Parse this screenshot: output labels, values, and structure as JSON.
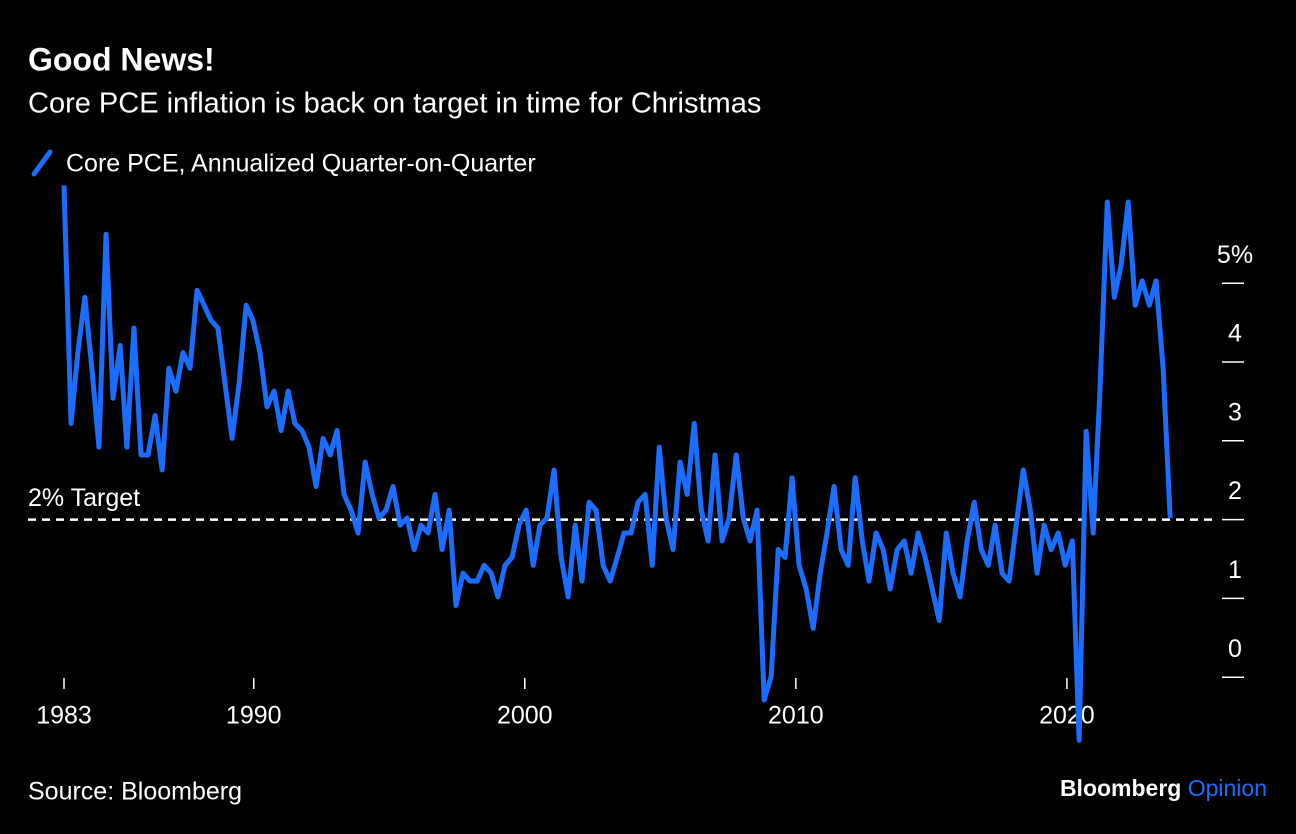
{
  "chart_data": {
    "type": "line",
    "title": "Good News!",
    "subtitle": "Core PCE inflation is back on target in time for Christmas",
    "source": "Source: Bloomberg",
    "brand": [
      "Bloomberg",
      "Opinion"
    ],
    "target": {
      "value": 2,
      "label": "2% Target"
    },
    "xlim": [
      1983,
      2024.8
    ],
    "xticks": [
      1983,
      1990,
      2000,
      2010,
      2020
    ],
    "ylim": [
      -1,
      6.5
    ],
    "yticks": [
      0,
      1,
      2,
      3,
      4,
      {
        "value": 5,
        "label": "5%"
      }
    ],
    "x": [
      1983.0,
      1983.26,
      1983.52,
      1983.77,
      1984.03,
      1984.29,
      1984.55,
      1984.81,
      1985.07,
      1985.32,
      1985.58,
      1985.84,
      1986.1,
      1986.36,
      1986.62,
      1986.87,
      1987.13,
      1987.39,
      1987.65,
      1987.91,
      1988.17,
      1988.42,
      1988.68,
      1988.94,
      1989.2,
      1989.46,
      1989.72,
      1989.97,
      1990.23,
      1990.49,
      1990.75,
      1991.01,
      1991.27,
      1991.52,
      1991.78,
      1992.04,
      1992.3,
      1992.56,
      1992.82,
      1993.07,
      1993.33,
      1993.59,
      1993.85,
      1994.11,
      1994.37,
      1994.62,
      1994.88,
      1995.14,
      1995.4,
      1995.66,
      1995.92,
      1996.17,
      1996.43,
      1996.69,
      1996.95,
      1997.21,
      1997.46,
      1997.72,
      1997.98,
      1998.24,
      1998.5,
      1998.76,
      1999.01,
      1999.27,
      1999.53,
      1999.79,
      2000.05,
      2000.31,
      2000.56,
      2000.82,
      2001.08,
      2001.34,
      2001.6,
      2001.86,
      2002.11,
      2002.37,
      2002.63,
      2002.89,
      2003.15,
      2003.41,
      2003.66,
      2003.92,
      2004.18,
      2004.44,
      2004.7,
      2004.96,
      2005.21,
      2005.47,
      2005.73,
      2005.99,
      2006.25,
      2006.51,
      2006.76,
      2007.02,
      2007.28,
      2007.54,
      2007.8,
      2008.06,
      2008.31,
      2008.57,
      2008.83,
      2009.09,
      2009.35,
      2009.6,
      2009.86,
      2010.12,
      2010.38,
      2010.64,
      2010.9,
      2011.15,
      2011.41,
      2011.67,
      2011.93,
      2012.19,
      2012.45,
      2012.7,
      2012.96,
      2013.22,
      2013.48,
      2013.74,
      2014.0,
      2014.25,
      2014.51,
      2014.77,
      2015.03,
      2015.29,
      2015.55,
      2015.8,
      2016.06,
      2016.32,
      2016.58,
      2016.84,
      2017.1,
      2017.35,
      2017.61,
      2017.87,
      2018.13,
      2018.39,
      2018.65,
      2018.9,
      2019.16,
      2019.42,
      2019.68,
      2019.94,
      2020.2,
      2020.45,
      2020.71,
      2020.97,
      2021.23,
      2021.49,
      2021.75,
      2022.0,
      2022.26,
      2022.52,
      2022.78,
      2023.04,
      2023.29,
      2023.55,
      2023.81
    ],
    "series": [
      {
        "name": "Core PCE, Annualized Quarter-on-Quarter",
        "color": "#1a6dff",
        "values": [
          6.24,
          3.22,
          4.15,
          4.82,
          3.91,
          2.92,
          5.62,
          3.54,
          4.21,
          2.92,
          4.43,
          2.82,
          2.82,
          3.32,
          2.63,
          3.92,
          3.63,
          4.12,
          3.92,
          4.91,
          4.72,
          4.53,
          4.43,
          3.73,
          3.03,
          3.73,
          4.72,
          4.53,
          4.12,
          3.43,
          3.63,
          3.13,
          3.63,
          3.22,
          3.13,
          2.92,
          2.42,
          3.03,
          2.82,
          3.13,
          2.32,
          2.12,
          1.83,
          2.73,
          2.32,
          2.02,
          2.12,
          2.42,
          1.93,
          2.02,
          1.62,
          1.93,
          1.83,
          2.32,
          1.62,
          2.12,
          0.91,
          1.32,
          1.22,
          1.22,
          1.42,
          1.32,
          1.02,
          1.42,
          1.52,
          1.93,
          2.12,
          1.42,
          1.93,
          2.02,
          2.63,
          1.52,
          1.02,
          1.93,
          1.22,
          2.22,
          2.12,
          1.42,
          1.22,
          1.52,
          1.83,
          1.83,
          2.22,
          2.32,
          1.42,
          2.92,
          2.02,
          1.62,
          2.73,
          2.32,
          3.22,
          2.12,
          1.73,
          2.82,
          1.73,
          2.02,
          2.82,
          2.02,
          1.73,
          2.12,
          -0.29,
          0.01,
          1.62,
          1.52,
          2.53,
          1.42,
          1.12,
          0.62,
          1.32,
          1.83,
          2.42,
          1.62,
          1.42,
          2.53,
          1.73,
          1.22,
          1.83,
          1.62,
          1.12,
          1.62,
          1.73,
          1.32,
          1.83,
          1.52,
          1.12,
          0.72,
          1.83,
          1.32,
          1.02,
          1.73,
          2.22,
          1.62,
          1.42,
          1.93,
          1.32,
          1.22,
          1.93,
          2.63,
          2.12,
          1.32,
          1.93,
          1.62,
          1.83,
          1.42,
          1.73,
          -0.8,
          3.12,
          1.83,
          3.73,
          6.03,
          4.82,
          5.23,
          6.03,
          4.72,
          5.03,
          4.72,
          5.03,
          3.92,
          2.02
        ]
      }
    ]
  }
}
